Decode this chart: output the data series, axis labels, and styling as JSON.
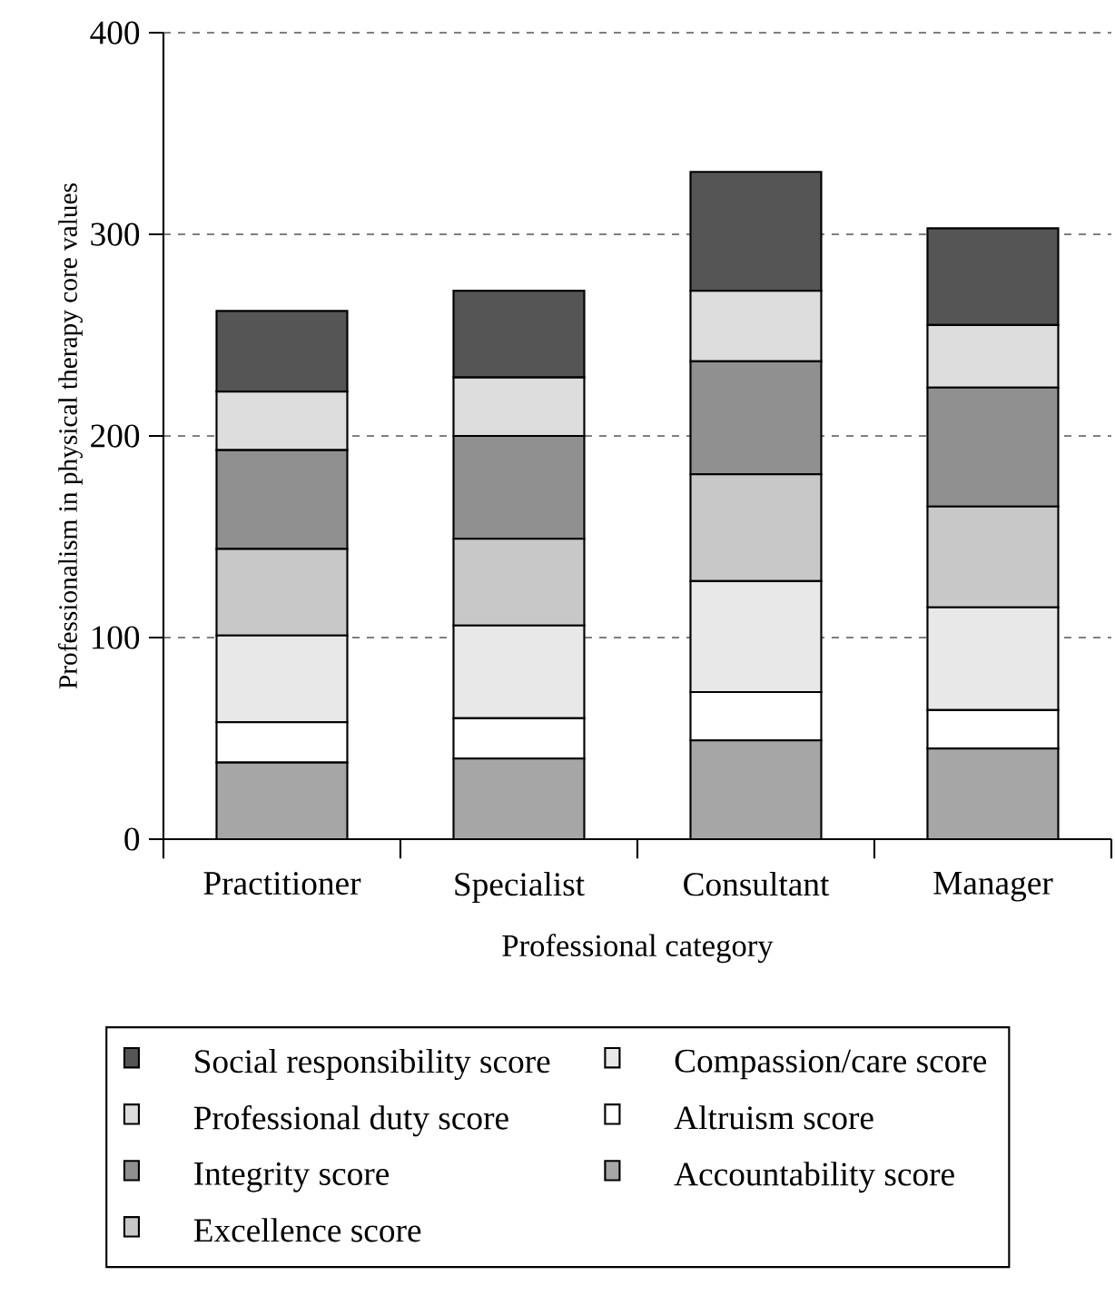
{
  "chart_data": {
    "type": "bar",
    "stacked": true,
    "xlabel": "Professional category",
    "ylabel": "Professionalism in physical therapy core values",
    "categories": [
      "Practitioner",
      "Specialist",
      "Consultant",
      "Manager"
    ],
    "series": [
      {
        "name": "Accountability score",
        "color": "#a6a6a6",
        "values": [
          38,
          40,
          49,
          45
        ]
      },
      {
        "name": "Altruism score",
        "color": "#ffffff",
        "values": [
          20,
          20,
          24,
          19
        ]
      },
      {
        "name": "Compassion/care score",
        "color": "#e8e8e8",
        "values": [
          43,
          46,
          55,
          51
        ]
      },
      {
        "name": "Excellence score",
        "color": "#c8c8c8",
        "values": [
          43,
          43,
          53,
          50
        ]
      },
      {
        "name": "Integrity score",
        "color": "#909090",
        "values": [
          49,
          51,
          56,
          59
        ]
      },
      {
        "name": "Professional duty score",
        "color": "#dddddd",
        "values": [
          29,
          29,
          35,
          31
        ]
      },
      {
        "name": "Social responsibility score",
        "color": "#555555",
        "values": [
          40,
          43,
          59,
          48
        ]
      }
    ],
    "ylim": [
      0,
      400
    ],
    "yticks": [
      0,
      100,
      200,
      300,
      400
    ],
    "grid": "y",
    "legend": "bottom"
  }
}
